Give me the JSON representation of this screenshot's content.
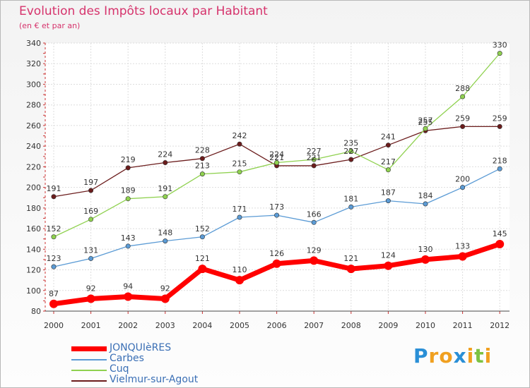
{
  "title": "Evolution des Impôts locaux par Habitant",
  "subtitle": "(en € et par an)",
  "brand": {
    "letters": [
      "P",
      "r",
      "o",
      "x",
      "i",
      "t",
      "i"
    ],
    "colors": [
      "#2a8fd6",
      "#f0a020",
      "#f0a020",
      "#2a8fd6",
      "#f0a020",
      "#7cc242",
      "#f0a020"
    ]
  },
  "chart_data": {
    "type": "line",
    "title": "Evolution des Impôts locaux par Habitant",
    "subtitle": "(en € et par an)",
    "xlabel": "",
    "ylabel": "",
    "categories": [
      "2000",
      "2001",
      "2002",
      "2003",
      "2004",
      "2005",
      "2006",
      "2007",
      "2008",
      "2009",
      "2010",
      "2011",
      "2012"
    ],
    "ylim": [
      80,
      340
    ],
    "yticks": [
      80,
      100,
      120,
      140,
      160,
      180,
      200,
      220,
      240,
      260,
      280,
      300,
      320,
      340
    ],
    "grid": true,
    "legend_position": "bottom-left",
    "series": [
      {
        "name": "JONQUIèRES",
        "color": "#ff0000",
        "values": [
          87,
          92,
          94,
          92,
          121,
          110,
          126,
          129,
          121,
          124,
          130,
          133,
          145
        ],
        "labels": [
          "87",
          "92",
          "94",
          "92",
          "121",
          "110",
          "126",
          "129",
          "121",
          "124",
          "130",
          "133",
          "145"
        ]
      },
      {
        "name": "Carbes",
        "color": "#5b9bd5",
        "values": [
          123,
          131,
          143,
          148,
          152,
          171,
          173,
          166,
          181,
          187,
          184,
          200,
          218
        ],
        "labels": [
          "123",
          "131",
          "143",
          "148",
          "152",
          "171",
          "173",
          "166",
          "181",
          "187",
          "184",
          "200",
          "218"
        ]
      },
      {
        "name": "Cuq",
        "color": "#8fd14f",
        "values": [
          152,
          169,
          189,
          191,
          213,
          215,
          224,
          227,
          235,
          217,
          257,
          288,
          330
        ],
        "labels": [
          "152",
          "169",
          "189",
          "191",
          "213",
          "215",
          "224",
          "227",
          "235",
          "217",
          "257",
          "288",
          "330"
        ]
      },
      {
        "name": "Vielmur-sur-Agout",
        "color": "#6b1c1c",
        "values": [
          191,
          197,
          219,
          224,
          228,
          242,
          221,
          221,
          227,
          241,
          255,
          259,
          259
        ],
        "labels": [
          "191",
          "197",
          "219",
          "224",
          "228",
          "242",
          "221",
          "221",
          "227",
          "241",
          "255",
          "259",
          "259"
        ]
      }
    ]
  }
}
